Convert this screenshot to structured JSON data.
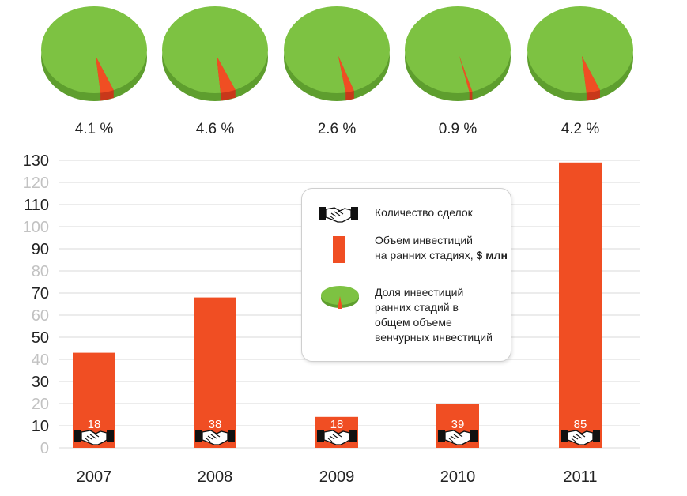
{
  "chart_data": [
    {
      "type": "pie",
      "charts": [
        {
          "year": "2007",
          "share_percent": 4.1,
          "label": "4.1 %"
        },
        {
          "year": "2008",
          "share_percent": 4.6,
          "label": "4.6 %"
        },
        {
          "year": "2009",
          "share_percent": 2.6,
          "label": "2.6 %"
        },
        {
          "year": "2010",
          "share_percent": 0.9,
          "label": "0.9 %"
        },
        {
          "year": "2011",
          "share_percent": 4.2,
          "label": "4.2 %"
        }
      ],
      "colors": {
        "base": "#7dc242",
        "base_dark": "#5e9e2e",
        "slice": "#f04e23"
      }
    },
    {
      "type": "bar",
      "categories": [
        "2007",
        "2008",
        "2009",
        "2010",
        "2011"
      ],
      "values": [
        43,
        68,
        14,
        20,
        129
      ],
      "deals": [
        "18",
        "38",
        "18",
        "39",
        "85"
      ],
      "ylim": [
        0,
        130
      ],
      "yticks": [
        "0",
        "10",
        "20",
        "30",
        "40",
        "50",
        "60",
        "70",
        "80",
        "90",
        "100",
        "110",
        "120",
        "130"
      ],
      "grid": true,
      "bar_color": "#f04e23"
    }
  ],
  "legend": {
    "items": [
      {
        "icon": "handshake-icon",
        "text": "Количество сделок"
      },
      {
        "icon": "bar-icon",
        "text": "Объем инвестиций\nна ранних стадиях, ",
        "bold": "$ млн"
      },
      {
        "icon": "pie-icon",
        "text": "Доля инвестиций\nранних стадий в\nобщем объеме\nвенчурных инвестиций"
      }
    ]
  },
  "colors": {
    "bar": "#f04e23",
    "pie": "#7dc242",
    "grid": "#d9d9d9"
  }
}
